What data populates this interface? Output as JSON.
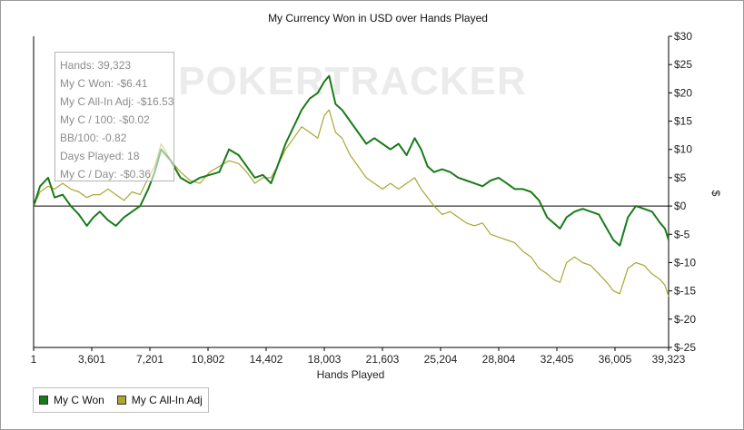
{
  "chart_data": {
    "type": "line",
    "title": "My Currency Won in USD over Hands Played",
    "xlabel": "Hands Played",
    "ylabel": "$",
    "xlim": [
      1,
      39323
    ],
    "ylim": [
      -25,
      30
    ],
    "x_ticks": [
      "1",
      "3,601",
      "7,201",
      "10,802",
      "14,402",
      "18,003",
      "21,603",
      "25,204",
      "28,804",
      "32,405",
      "36,005",
      "39,323"
    ],
    "x_tick_values": [
      1,
      3601,
      7201,
      10802,
      14402,
      18003,
      21603,
      25204,
      28804,
      32405,
      36005,
      39323
    ],
    "y_ticks": [
      "$30",
      "$25",
      "$20",
      "$15",
      "$10",
      "$5",
      "$0",
      "$-5",
      "$-10",
      "$-15",
      "$-20",
      "$-25"
    ],
    "y_tick_values": [
      30,
      25,
      20,
      15,
      10,
      5,
      0,
      -5,
      -10,
      -15,
      -20,
      -25
    ],
    "grid": false,
    "watermark": "POKERTRACKER",
    "series": [
      {
        "name": "My C Won",
        "color": "#1a7a1a",
        "x": [
          1,
          400,
          900,
          1300,
          1800,
          2300,
          2800,
          3300,
          3700,
          4100,
          4600,
          5100,
          5600,
          6100,
          6600,
          7100,
          7500,
          7900,
          8500,
          9100,
          9700,
          10300,
          10900,
          11500,
          12100,
          12700,
          13200,
          13700,
          14200,
          14700,
          15100,
          15600,
          16100,
          16600,
          17100,
          17600,
          18000,
          18300,
          18700,
          19100,
          19600,
          20100,
          20600,
          21100,
          21600,
          22100,
          22600,
          23100,
          23600,
          24000,
          24400,
          24800,
          25300,
          25800,
          26300,
          26800,
          27300,
          27800,
          28300,
          28800,
          29300,
          29800,
          30300,
          30800,
          31300,
          31800,
          32200,
          32600,
          33000,
          33500,
          34000,
          34500,
          35000,
          35500,
          35900,
          36300,
          36800,
          37300,
          37800,
          38300,
          38800,
          39100,
          39323
        ],
        "values": [
          0,
          3.5,
          5,
          1.5,
          2,
          0,
          -1.5,
          -3.5,
          -2,
          -1,
          -2.5,
          -3.5,
          -2,
          -1,
          0,
          3,
          6,
          10,
          8,
          5,
          4,
          5,
          5.5,
          6,
          10,
          9,
          7,
          5,
          5.5,
          4,
          7,
          11,
          14,
          17,
          19,
          20,
          22,
          23,
          18,
          17,
          15,
          13,
          11,
          12,
          11,
          10,
          11,
          9,
          12,
          10,
          7,
          6,
          6.5,
          6,
          5,
          4.5,
          4,
          3.5,
          4.5,
          5,
          4,
          3,
          3,
          2.5,
          1,
          -2,
          -3,
          -4,
          -2,
          -1,
          -0.5,
          -1,
          -1.5,
          -4,
          -6,
          -7,
          -2,
          0,
          -0.5,
          -1,
          -3,
          -4,
          -6
        ],
        "final_value": -6.41
      },
      {
        "name": "My C All-In Adj",
        "color": "#a8a832",
        "x": [
          1,
          400,
          900,
          1300,
          1800,
          2300,
          2800,
          3300,
          3700,
          4100,
          4600,
          5100,
          5600,
          6100,
          6600,
          7100,
          7500,
          7900,
          8500,
          9100,
          9700,
          10300,
          10900,
          11500,
          12100,
          12700,
          13200,
          13700,
          14200,
          14700,
          15100,
          15600,
          16100,
          16600,
          17100,
          17600,
          18000,
          18300,
          18700,
          19100,
          19600,
          20100,
          20600,
          21100,
          21600,
          22100,
          22600,
          23100,
          23600,
          24000,
          24400,
          24800,
          25300,
          25800,
          26300,
          26800,
          27300,
          27800,
          28300,
          28800,
          29300,
          29800,
          30300,
          30800,
          31300,
          31800,
          32200,
          32600,
          33000,
          33500,
          34000,
          34500,
          35000,
          35500,
          35900,
          36300,
          36800,
          37300,
          37800,
          38300,
          38800,
          39100,
          39323
        ],
        "values": [
          0,
          2.5,
          3.5,
          3,
          4,
          3,
          2.5,
          1.5,
          2,
          2,
          3,
          2,
          1,
          2.5,
          2,
          5,
          7,
          11,
          8,
          6,
          4.5,
          4,
          6,
          7,
          8,
          7.5,
          6,
          4,
          5,
          5,
          7,
          10,
          12,
          14,
          13,
          12,
          16,
          17,
          13,
          12,
          9,
          7,
          5,
          4,
          3,
          4,
          3,
          4,
          5,
          3,
          1.5,
          0,
          -1.5,
          -1,
          -2,
          -3,
          -3.5,
          -3,
          -5,
          -5.5,
          -6,
          -6.5,
          -8,
          -9,
          -11,
          -12,
          -13,
          -13.5,
          -10,
          -9,
          -10,
          -10.5,
          -12,
          -13.5,
          -15,
          -15.5,
          -11,
          -10,
          -10.5,
          -12,
          -13,
          -14,
          -16
        ],
        "final_value": -16.53
      }
    ]
  },
  "stats": [
    "Hands: 39,323",
    "My C Won: -$6.41",
    "My C All-In Adj: -$16.53",
    "My C / 100: -$0.02",
    "BB/100: -0.82",
    "Days Played: 18",
    "My C / Day: -$0.36"
  ],
  "legend": [
    {
      "label": "My C Won",
      "color": "#1a7a1a"
    },
    {
      "label": "My C All-In Adj",
      "color": "#a8a832"
    }
  ]
}
